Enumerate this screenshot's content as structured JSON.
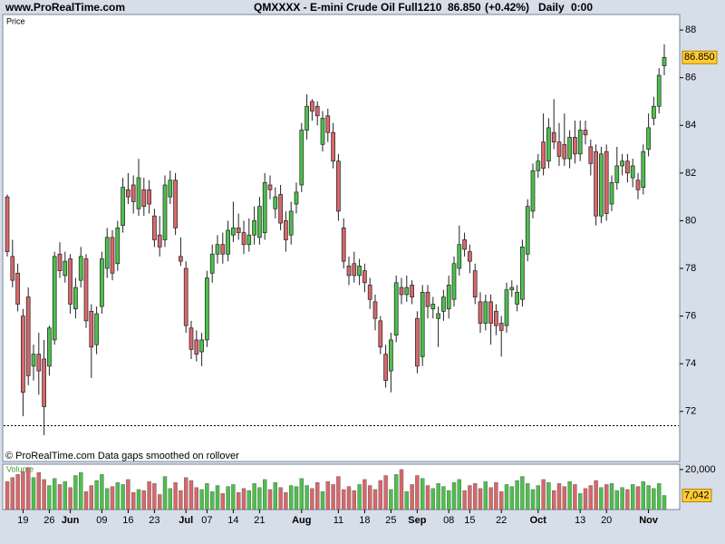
{
  "chart_data": {
    "type": "candlestick",
    "site": "www.ProRealTime.com",
    "title": "QMXXXX - E-mini Crude Oil Full1210",
    "last": "86.850",
    "change": "(+0.42%)",
    "period": "Daily",
    "time": "0:00",
    "panel_label": "Price",
    "footer": "© ProRealTime.com  Data gaps smoothed on rollover",
    "up_color": "#4cc04c",
    "down_color": "#d8676b",
    "ylim": [
      69.9,
      88.65
    ],
    "yticks": [
      72,
      74,
      76,
      78,
      80,
      82,
      84,
      86,
      88
    ],
    "reference_line": 71.4,
    "price_marker": {
      "value": 86.85,
      "label": "86.850"
    },
    "categories": [
      null,
      null,
      null,
      "19",
      null,
      null,
      null,
      null,
      "26",
      null,
      null,
      null,
      "Jun",
      null,
      null,
      null,
      null,
      null,
      "09",
      null,
      null,
      null,
      null,
      "16",
      null,
      null,
      null,
      null,
      "23",
      null,
      null,
      null,
      null,
      null,
      "Jul",
      null,
      null,
      null,
      "07",
      null,
      null,
      null,
      null,
      "14",
      null,
      null,
      null,
      null,
      "21",
      null,
      null,
      null,
      null,
      null,
      null,
      null,
      "Aug",
      null,
      null,
      null,
      null,
      null,
      null,
      "11",
      null,
      null,
      null,
      null,
      "18",
      null,
      null,
      null,
      null,
      "25",
      null,
      null,
      null,
      null,
      "Sep",
      null,
      null,
      null,
      null,
      null,
      "08",
      null,
      null,
      null,
      "15",
      null,
      null,
      null,
      null,
      null,
      "22",
      null,
      null,
      null,
      null,
      null,
      null,
      "Oct",
      null,
      null,
      null,
      null,
      null,
      null,
      null,
      "13",
      null,
      null,
      null,
      null,
      "20",
      null,
      null,
      null,
      null,
      null,
      null,
      null,
      "Nov",
      null,
      null,
      null
    ],
    "ohlc": [
      [
        81,
        81.1,
        78.5,
        78.7
      ],
      [
        78.5,
        79.2,
        77.2,
        77.5
      ],
      [
        77.8,
        78.2,
        76.2,
        76.5
      ],
      [
        76,
        76.3,
        71.8,
        72.8
      ],
      [
        76.8,
        77.2,
        73.1,
        73.5
      ],
      [
        73.9,
        74.8,
        73.3,
        74.4
      ],
      [
        74.4,
        75.3,
        72.7,
        73.7
      ],
      [
        74.2,
        75,
        71,
        72.2
      ],
      [
        73.9,
        75.6,
        73.5,
        75.5
      ],
      [
        75,
        78.7,
        74.8,
        78.5
      ],
      [
        78.6,
        79.1,
        77.6,
        77.9
      ],
      [
        77.7,
        78.7,
        77.4,
        78.3
      ],
      [
        78.4,
        78.6,
        76.1,
        76.5
      ],
      [
        76.3,
        77.6,
        75.9,
        77.2
      ],
      [
        77.5,
        78.9,
        77.2,
        78.5
      ],
      [
        78.4,
        78.6,
        75.5,
        75.8
      ],
      [
        76.2,
        76.5,
        73.4,
        74.7
      ],
      [
        74.8,
        76.4,
        74.4,
        76.1
      ],
      [
        76.4,
        78.7,
        76.1,
        78.4
      ],
      [
        78,
        79.7,
        77.6,
        79.3
      ],
      [
        79.3,
        79.6,
        77.5,
        77.8
      ],
      [
        78.2,
        80,
        77.9,
        79.7
      ],
      [
        79.8,
        81.8,
        79.5,
        81.4
      ],
      [
        81.3,
        82,
        80.7,
        81
      ],
      [
        81.5,
        81.9,
        80.3,
        80.8
      ],
      [
        80.5,
        82.6,
        80.2,
        81.8
      ],
      [
        81.3,
        81.8,
        80.2,
        80.6
      ],
      [
        81.3,
        81.7,
        80.3,
        80.7
      ],
      [
        80.2,
        80.5,
        78.9,
        79.2
      ],
      [
        79.4,
        80.2,
        78.5,
        78.9
      ],
      [
        79.2,
        81.9,
        78.9,
        81.5
      ],
      [
        81,
        82.1,
        80.7,
        81.7
      ],
      [
        81.7,
        82,
        79.4,
        79.7
      ],
      [
        78.5,
        79.3,
        78.1,
        78.3
      ],
      [
        78,
        78.3,
        75.3,
        75.6
      ],
      [
        75.5,
        75.8,
        74.2,
        74.6
      ],
      [
        75,
        75.4,
        74.1,
        74.4
      ],
      [
        74.5,
        75.3,
        73.9,
        75
      ],
      [
        75,
        77.9,
        74.7,
        77.6
      ],
      [
        77.8,
        79,
        77.4,
        78.6
      ],
      [
        78.6,
        79.4,
        78.2,
        79
      ],
      [
        79,
        79.5,
        78.2,
        78.6
      ],
      [
        78.6,
        80,
        78.3,
        79.6
      ],
      [
        79.4,
        80.8,
        79.1,
        79.7
      ],
      [
        79.7,
        80.3,
        79.2,
        79.5
      ],
      [
        79.5,
        80,
        78.6,
        79
      ],
      [
        79,
        80.1,
        78.7,
        79.4
      ],
      [
        79.4,
        80.6,
        79,
        80
      ],
      [
        79.3,
        81,
        79,
        80.6
      ],
      [
        79.5,
        82,
        79.2,
        81.6
      ],
      [
        81.5,
        81.9,
        80.9,
        81.3
      ],
      [
        80.5,
        81.4,
        80.1,
        81
      ],
      [
        81.1,
        81.5,
        79.6,
        79.9
      ],
      [
        80,
        80.4,
        78.7,
        79.2
      ],
      [
        79.4,
        80.8,
        79,
        80.4
      ],
      [
        80.7,
        81.6,
        80.3,
        81.2
      ],
      [
        81.5,
        84.1,
        81.2,
        83.8
      ],
      [
        83.8,
        85.3,
        83.4,
        84.8
      ],
      [
        85,
        85.1,
        84.2,
        84.6
      ],
      [
        84.8,
        85,
        84,
        84.4
      ],
      [
        83.2,
        84.6,
        82.9,
        84.3
      ],
      [
        84.4,
        84.7,
        83.3,
        83.7
      ],
      [
        83.7,
        84.1,
        82.2,
        82.5
      ],
      [
        82.5,
        82.8,
        80,
        80.4
      ],
      [
        79.7,
        80.1,
        78,
        78.3
      ],
      [
        78.1,
        78.5,
        77.3,
        77.7
      ],
      [
        78.2,
        78.7,
        77.4,
        77.7
      ],
      [
        77.7,
        78.4,
        77.3,
        78.1
      ],
      [
        77.9,
        78.2,
        77,
        77.4
      ],
      [
        77.3,
        77.6,
        76.3,
        76.7
      ],
      [
        76.6,
        76.9,
        75.4,
        75.9
      ],
      [
        75.8,
        76,
        74.4,
        74.7
      ],
      [
        74.4,
        74.8,
        73,
        73.3
      ],
      [
        73.7,
        75.3,
        72.8,
        75
      ],
      [
        75.2,
        77.7,
        74.9,
        77.4
      ],
      [
        77.2,
        77.6,
        76.5,
        76.9
      ],
      [
        76.9,
        77.7,
        76.6,
        77.2
      ],
      [
        77.3,
        77.5,
        76.5,
        76.8
      ],
      [
        75.9,
        76.2,
        73.6,
        73.9
      ],
      [
        74.3,
        77.3,
        73.9,
        77
      ],
      [
        77,
        77.3,
        75.9,
        76.4
      ],
      [
        76.3,
        76.8,
        75.9,
        76.5
      ],
      [
        75.9,
        76.4,
        74.7,
        76.1
      ],
      [
        76.2,
        77.1,
        75.8,
        76.8
      ],
      [
        76.3,
        77.7,
        75.9,
        77.3
      ],
      [
        76.7,
        78.5,
        76.4,
        78.2
      ],
      [
        78,
        79.8,
        77.7,
        79
      ],
      [
        79.2,
        79.5,
        78.5,
        78.8
      ],
      [
        78.7,
        79,
        77.8,
        78.3
      ],
      [
        77.9,
        78.2,
        76.5,
        76.8
      ],
      [
        76.6,
        77,
        75.3,
        75.7
      ],
      [
        75.7,
        76.9,
        75.4,
        76.6
      ],
      [
        76.6,
        76.9,
        74.8,
        75.7
      ],
      [
        76.2,
        76.5,
        75.2,
        75.6
      ],
      [
        75.7,
        76,
        74.3,
        75.4
      ],
      [
        75.6,
        77.4,
        75.3,
        77.1
      ],
      [
        77.1,
        77.5,
        76.8,
        77.2
      ],
      [
        76.5,
        77.3,
        76.2,
        77
      ],
      [
        76.7,
        79.2,
        76.4,
        78.9
      ],
      [
        78.6,
        80.9,
        78.3,
        80.6
      ],
      [
        80.4,
        82.4,
        80.1,
        82.1
      ],
      [
        82.1,
        82.8,
        81.8,
        82.5
      ],
      [
        83.3,
        84.5,
        81.9,
        82.2
      ],
      [
        82.5,
        84.3,
        82.2,
        83.9
      ],
      [
        83.7,
        85.1,
        83,
        83.3
      ],
      [
        83.3,
        84.1,
        82.3,
        82.7
      ],
      [
        83.2,
        84.5,
        82.3,
        82.6
      ],
      [
        82.6,
        83.8,
        82.2,
        83.5
      ],
      [
        83.5,
        84.2,
        82.4,
        82.8
      ],
      [
        82.8,
        84.2,
        82.5,
        83.8
      ],
      [
        83.8,
        84.2,
        83.2,
        83.6
      ],
      [
        83.1,
        83.4,
        81.9,
        82.4
      ],
      [
        82.9,
        83.2,
        79.8,
        80.2
      ],
      [
        80.2,
        83.1,
        79.9,
        82.8
      ],
      [
        82.9,
        83.2,
        80,
        80.3
      ],
      [
        80.7,
        81.9,
        80.4,
        81.6
      ],
      [
        81.6,
        83.1,
        81.3,
        82.3
      ],
      [
        82.3,
        82.8,
        81.9,
        82.5
      ],
      [
        82.5,
        82.8,
        81.6,
        82
      ],
      [
        81.8,
        82.6,
        81.4,
        82.3
      ],
      [
        81.7,
        82,
        80.9,
        81.3
      ],
      [
        81.4,
        83.2,
        81.1,
        82.9
      ],
      [
        83,
        84.5,
        82.7,
        83.9
      ],
      [
        84.3,
        85.2,
        84,
        84.8
      ],
      [
        84.8,
        86.4,
        84.5,
        86.1
      ],
      [
        86.5,
        87.4,
        86.1,
        86.85
      ]
    ],
    "volume": {
      "type": "bar",
      "label": "Volume",
      "ylim": [
        0,
        22200
      ],
      "yticks": [
        {
          "value": 20000,
          "label": "20,000"
        }
      ],
      "marker": {
        "value": 7042,
        "label": "7,042"
      },
      "values": [
        14000,
        16000,
        17500,
        19000,
        21000,
        16000,
        18500,
        15000,
        12000,
        15500,
        12500,
        14000,
        11000,
        17000,
        18500,
        9000,
        12000,
        14500,
        17500,
        10500,
        11500,
        13500,
        12500,
        15000,
        8500,
        10000,
        9500,
        14000,
        13000,
        7500,
        16500,
        10500,
        13500,
        9500,
        16000,
        14500,
        11000,
        10000,
        13000,
        9000,
        12000,
        8000,
        11500,
        12500,
        8500,
        10500,
        9500,
        13000,
        11000,
        15000,
        10000,
        13500,
        11000,
        8500,
        12000,
        11500,
        15500,
        12000,
        10500,
        13500,
        9000,
        14000,
        12500,
        16500,
        10000,
        11500,
        9500,
        12500,
        15000,
        12000,
        10000,
        14500,
        17000,
        10000,
        17500,
        20000,
        9000,
        12500,
        17000,
        15500,
        12000,
        10500,
        13000,
        11500,
        9500,
        13500,
        15000,
        9500,
        12000,
        13000,
        10500,
        14000,
        11000,
        13500,
        9000,
        12500,
        11500,
        14500,
        16500,
        13000,
        10000,
        12000,
        15000,
        13500,
        9500,
        13000,
        11500,
        14000,
        12500,
        8000,
        10500,
        12000,
        14500,
        11000,
        12500,
        13000,
        9500,
        11000,
        10000,
        12500,
        11500,
        14000,
        12000,
        10500,
        13000,
        7042
      ]
    }
  }
}
